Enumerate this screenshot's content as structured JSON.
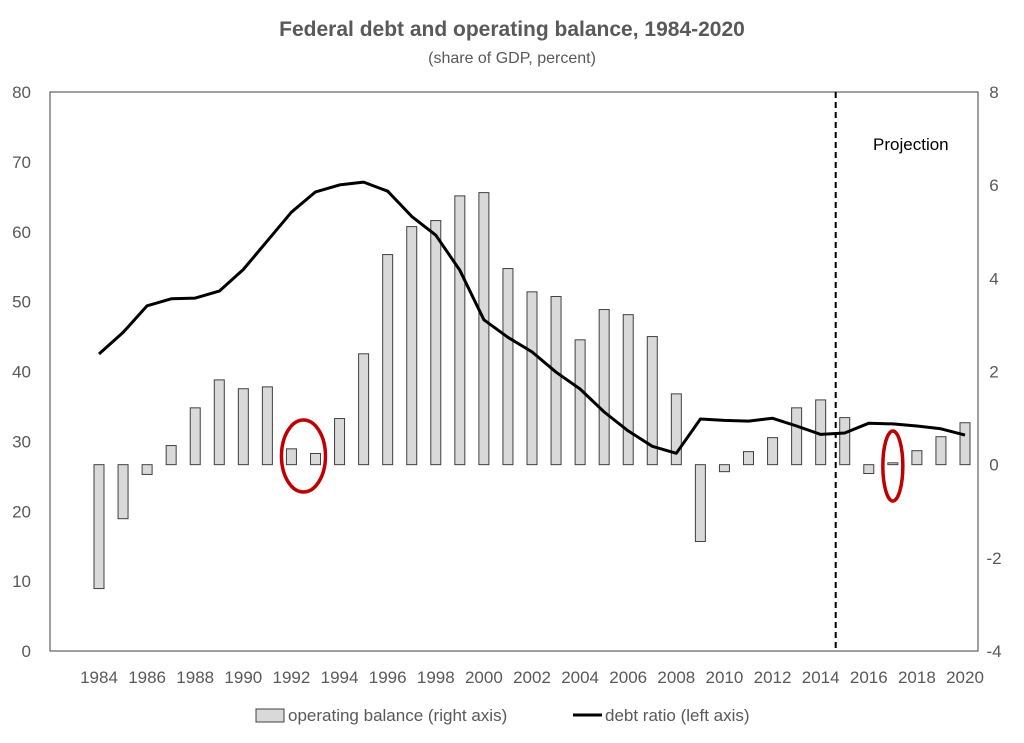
{
  "chart_data": {
    "type": "bar+line",
    "title": "Federal debt and operating balance, 1984-2020",
    "subtitle": "(share of GDP, percent)",
    "x": [
      1984,
      1985,
      1986,
      1987,
      1988,
      1989,
      1990,
      1991,
      1992,
      1993,
      1994,
      1995,
      1996,
      1997,
      1998,
      1999,
      2000,
      2001,
      2002,
      2003,
      2004,
      2005,
      2006,
      2007,
      2008,
      2009,
      2010,
      2011,
      2012,
      2013,
      2014,
      2015,
      2016,
      2017,
      2018,
      2019,
      2020
    ],
    "x_tick_labels": [
      "1984",
      "1986",
      "1988",
      "1990",
      "1992",
      "1994",
      "1996",
      "1998",
      "2000",
      "2002",
      "2004",
      "2006",
      "2008",
      "2010",
      "2012",
      "2014",
      "2016",
      "2018",
      "2020"
    ],
    "series": [
      {
        "name": "operating balance (right axis)",
        "type": "bar",
        "axis": "right",
        "color": "#d9d9d9",
        "edge_color": "#404040",
        "values": [
          -2.66,
          -1.16,
          -0.21,
          0.41,
          1.22,
          1.82,
          1.63,
          1.67,
          0.34,
          0.24,
          0.99,
          2.38,
          4.51,
          5.11,
          5.24,
          5.77,
          5.84,
          4.21,
          3.71,
          3.61,
          2.68,
          3.33,
          3.22,
          2.75,
          1.52,
          -1.65,
          -0.15,
          0.28,
          0.58,
          1.22,
          1.39,
          1.01,
          -0.19,
          0.04,
          0.3,
          0.6,
          0.9
        ]
      },
      {
        "name": "debt ratio (left axis)",
        "type": "line",
        "axis": "left",
        "color": "#000000",
        "values": [
          42.5,
          45.6,
          49.4,
          50.4,
          50.5,
          51.5,
          54.6,
          58.7,
          62.8,
          65.7,
          66.7,
          67.1,
          65.8,
          62.2,
          59.5,
          54.5,
          47.4,
          44.9,
          42.8,
          39.9,
          37.5,
          34.2,
          31.5,
          29.3,
          28.3,
          33.2,
          33.0,
          32.9,
          33.3,
          32.2,
          31.0,
          31.2,
          32.6,
          32.5,
          32.2,
          31.8,
          30.9
        ]
      }
    ],
    "left_axis": {
      "ylim": [
        0,
        80
      ],
      "ticks": [
        "0",
        "10",
        "20",
        "30",
        "40",
        "50",
        "60",
        "70",
        "80"
      ]
    },
    "right_axis": {
      "ylim": [
        -4,
        8
      ],
      "ticks": [
        "-4",
        "-2",
        "0",
        "2",
        "4",
        "6",
        "8"
      ]
    },
    "projection_marker": {
      "after_year": 2014.5,
      "label": "Projection",
      "style": "dashed"
    },
    "highlight_ellipses": [
      {
        "years": [
          1992,
          1993
        ],
        "color": "#c00000"
      },
      {
        "years": [
          2017
        ],
        "color": "#c00000"
      }
    ],
    "legend": {
      "placement": "bottom",
      "items": [
        "operating balance (right axis)",
        "debt ratio (left axis)"
      ]
    },
    "grid": false
  }
}
